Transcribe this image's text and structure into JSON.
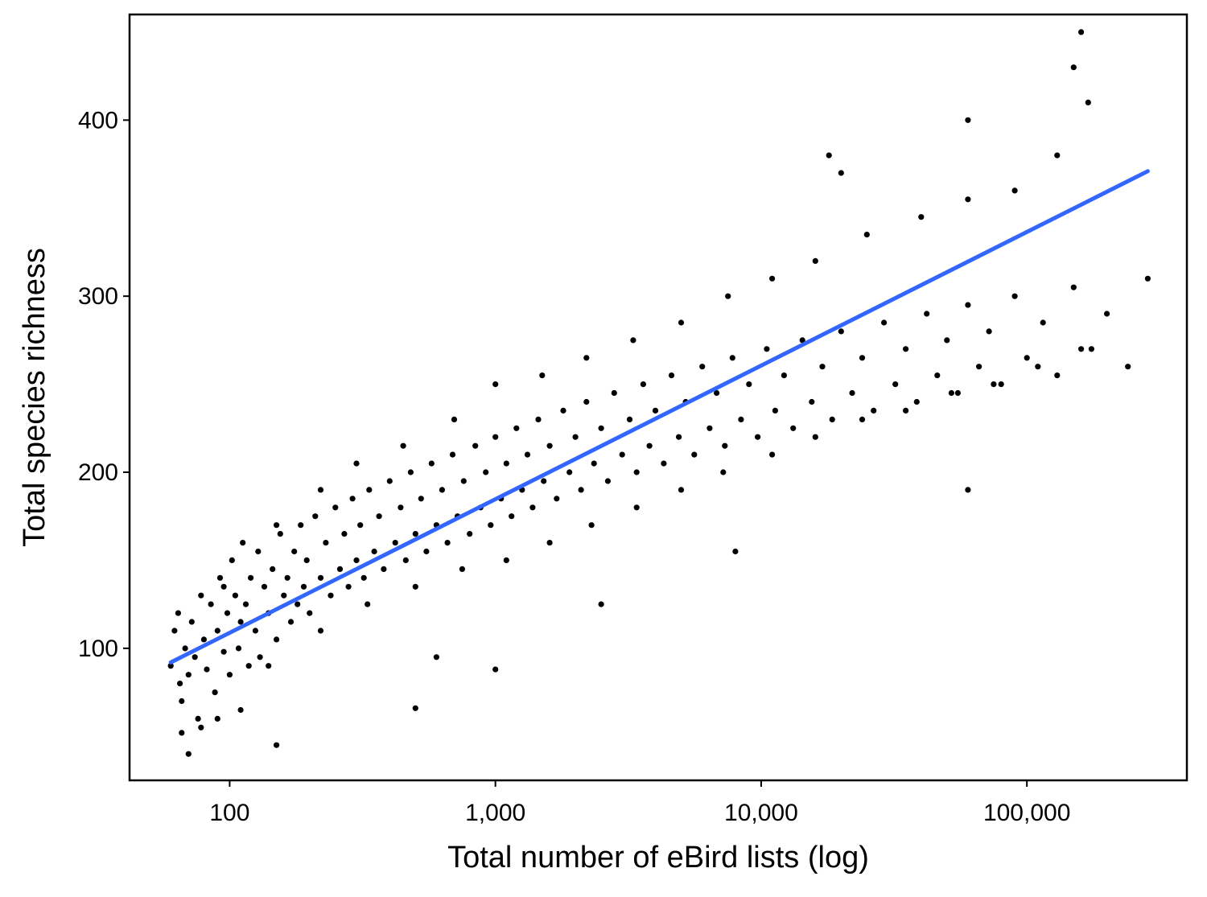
{
  "chart_data": {
    "type": "scatter",
    "title": "",
    "xlabel": "Total number of eBird lists (log)",
    "ylabel": "Total species richness",
    "x_scale": "log10",
    "xlim": [
      42,
      400000
    ],
    "ylim": [
      25,
      460
    ],
    "x_ticks": [
      {
        "value": 100,
        "label": "100"
      },
      {
        "value": 1000,
        "label": "1,000"
      },
      {
        "value": 10000,
        "label": "10,000"
      },
      {
        "value": 100000,
        "label": "100,000"
      }
    ],
    "y_ticks": [
      {
        "value": 100,
        "label": "100"
      },
      {
        "value": 200,
        "label": "200"
      },
      {
        "value": 300,
        "label": "300"
      },
      {
        "value": 400,
        "label": "400"
      }
    ],
    "grid": false,
    "colors": {
      "points": "#000000",
      "trend": "#3366FF",
      "axes": "#000000"
    },
    "trend_line": {
      "type": "linear",
      "from": [
        60,
        92
      ],
      "to": [
        285000,
        371
      ]
    },
    "series": [
      {
        "points": [
          [
            60,
            90
          ],
          [
            62,
            110
          ],
          [
            64,
            120
          ],
          [
            66,
            70
          ],
          [
            68,
            100
          ],
          [
            70,
            85
          ],
          [
            72,
            115
          ],
          [
            74,
            95
          ],
          [
            76,
            60
          ],
          [
            78,
            130
          ],
          [
            80,
            105
          ],
          [
            82,
            88
          ],
          [
            85,
            125
          ],
          [
            88,
            75
          ],
          [
            90,
            110
          ],
          [
            92,
            140
          ],
          [
            95,
            98
          ],
          [
            98,
            120
          ],
          [
            100,
            85
          ],
          [
            102,
            150
          ],
          [
            105,
            130
          ],
          [
            108,
            100
          ],
          [
            110,
            115
          ],
          [
            112,
            160
          ],
          [
            115,
            125
          ],
          [
            118,
            90
          ],
          [
            120,
            140
          ],
          [
            125,
            110
          ],
          [
            128,
            155
          ],
          [
            130,
            95
          ],
          [
            135,
            135
          ],
          [
            140,
            120
          ],
          [
            145,
            145
          ],
          [
            150,
            105
          ],
          [
            155,
            165
          ],
          [
            160,
            130
          ],
          [
            165,
            140
          ],
          [
            170,
            115
          ],
          [
            175,
            155
          ],
          [
            180,
            125
          ],
          [
            185,
            170
          ],
          [
            190,
            135
          ],
          [
            195,
            150
          ],
          [
            200,
            120
          ],
          [
            210,
            175
          ],
          [
            220,
            140
          ],
          [
            230,
            160
          ],
          [
            240,
            130
          ],
          [
            250,
            180
          ],
          [
            260,
            145
          ],
          [
            270,
            165
          ],
          [
            280,
            135
          ],
          [
            290,
            185
          ],
          [
            300,
            150
          ],
          [
            310,
            170
          ],
          [
            320,
            140
          ],
          [
            335,
            190
          ],
          [
            350,
            155
          ],
          [
            365,
            175
          ],
          [
            380,
            145
          ],
          [
            400,
            195
          ],
          [
            420,
            160
          ],
          [
            440,
            180
          ],
          [
            460,
            150
          ],
          [
            480,
            200
          ],
          [
            500,
            165
          ],
          [
            525,
            185
          ],
          [
            550,
            155
          ],
          [
            575,
            205
          ],
          [
            600,
            170
          ],
          [
            630,
            190
          ],
          [
            660,
            160
          ],
          [
            690,
            210
          ],
          [
            720,
            175
          ],
          [
            760,
            195
          ],
          [
            800,
            165
          ],
          [
            840,
            215
          ],
          [
            880,
            180
          ],
          [
            920,
            200
          ],
          [
            960,
            170
          ],
          [
            1000,
            220
          ],
          [
            1050,
            185
          ],
          [
            1100,
            205
          ],
          [
            1150,
            175
          ],
          [
            1200,
            225
          ],
          [
            1260,
            190
          ],
          [
            1320,
            210
          ],
          [
            1380,
            180
          ],
          [
            1450,
            230
          ],
          [
            1520,
            195
          ],
          [
            1600,
            215
          ],
          [
            1700,
            185
          ],
          [
            1800,
            235
          ],
          [
            1900,
            200
          ],
          [
            2000,
            220
          ],
          [
            2100,
            190
          ],
          [
            2200,
            240
          ],
          [
            2350,
            205
          ],
          [
            2500,
            225
          ],
          [
            2650,
            195
          ],
          [
            2800,
            245
          ],
          [
            3000,
            210
          ],
          [
            3200,
            230
          ],
          [
            3400,
            200
          ],
          [
            3600,
            250
          ],
          [
            3800,
            215
          ],
          [
            4000,
            235
          ],
          [
            4300,
            205
          ],
          [
            4600,
            255
          ],
          [
            4900,
            220
          ],
          [
            5200,
            240
          ],
          [
            5600,
            210
          ],
          [
            6000,
            260
          ],
          [
            6400,
            225
          ],
          [
            6800,
            245
          ],
          [
            7300,
            215
          ],
          [
            7800,
            265
          ],
          [
            8400,
            230
          ],
          [
            9000,
            250
          ],
          [
            9700,
            220
          ],
          [
            10500,
            270
          ],
          [
            11300,
            235
          ],
          [
            12200,
            255
          ],
          [
            13200,
            225
          ],
          [
            14300,
            275
          ],
          [
            15500,
            240
          ],
          [
            17000,
            260
          ],
          [
            18500,
            230
          ],
          [
            20000,
            280
          ],
          [
            22000,
            245
          ],
          [
            24000,
            265
          ],
          [
            26500,
            235
          ],
          [
            29000,
            285
          ],
          [
            32000,
            250
          ],
          [
            35000,
            270
          ],
          [
            38500,
            240
          ],
          [
            42000,
            290
          ],
          [
            46000,
            255
          ],
          [
            50000,
            275
          ],
          [
            55000,
            245
          ],
          [
            60000,
            295
          ],
          [
            66000,
            260
          ],
          [
            72000,
            280
          ],
          [
            80000,
            250
          ],
          [
            90000,
            300
          ],
          [
            100000,
            265
          ],
          [
            115000,
            285
          ],
          [
            130000,
            255
          ],
          [
            150000,
            305
          ],
          [
            175000,
            270
          ],
          [
            200000,
            290
          ],
          [
            240000,
            260
          ],
          [
            285000,
            310
          ],
          [
            65,
            80
          ],
          [
            95,
            135
          ],
          [
            140,
            90
          ],
          [
            220,
            110
          ],
          [
            330,
            125
          ],
          [
            500,
            135
          ],
          [
            750,
            145
          ],
          [
            1100,
            150
          ],
          [
            1600,
            160
          ],
          [
            2300,
            170
          ],
          [
            3400,
            180
          ],
          [
            5000,
            190
          ],
          [
            7200,
            200
          ],
          [
            11000,
            210
          ],
          [
            16000,
            220
          ],
          [
            24000,
            230
          ],
          [
            35000,
            235
          ],
          [
            52000,
            245
          ],
          [
            75000,
            250
          ],
          [
            110000,
            260
          ],
          [
            160000,
            270
          ],
          [
            70,
            40
          ],
          [
            66,
            52
          ],
          [
            78,
            55
          ],
          [
            90,
            60
          ],
          [
            110,
            65
          ],
          [
            150,
            45
          ],
          [
            150,
            170
          ],
          [
            220,
            190
          ],
          [
            300,
            205
          ],
          [
            450,
            215
          ],
          [
            700,
            230
          ],
          [
            1000,
            250
          ],
          [
            1500,
            255
          ],
          [
            2200,
            265
          ],
          [
            3300,
            275
          ],
          [
            5000,
            285
          ],
          [
            7500,
            300
          ],
          [
            11000,
            310
          ],
          [
            16000,
            320
          ],
          [
            25000,
            335
          ],
          [
            40000,
            345
          ],
          [
            60000,
            355
          ],
          [
            90000,
            360
          ],
          [
            130000,
            380
          ],
          [
            60000,
            400
          ],
          [
            150000,
            430
          ],
          [
            160000,
            450
          ],
          [
            170000,
            410
          ],
          [
            20000,
            370
          ],
          [
            18000,
            380
          ],
          [
            600,
            95
          ],
          [
            1000,
            88
          ],
          [
            2500,
            125
          ],
          [
            500,
            66
          ],
          [
            8000,
            155
          ],
          [
            60000,
            190
          ]
        ]
      }
    ]
  }
}
